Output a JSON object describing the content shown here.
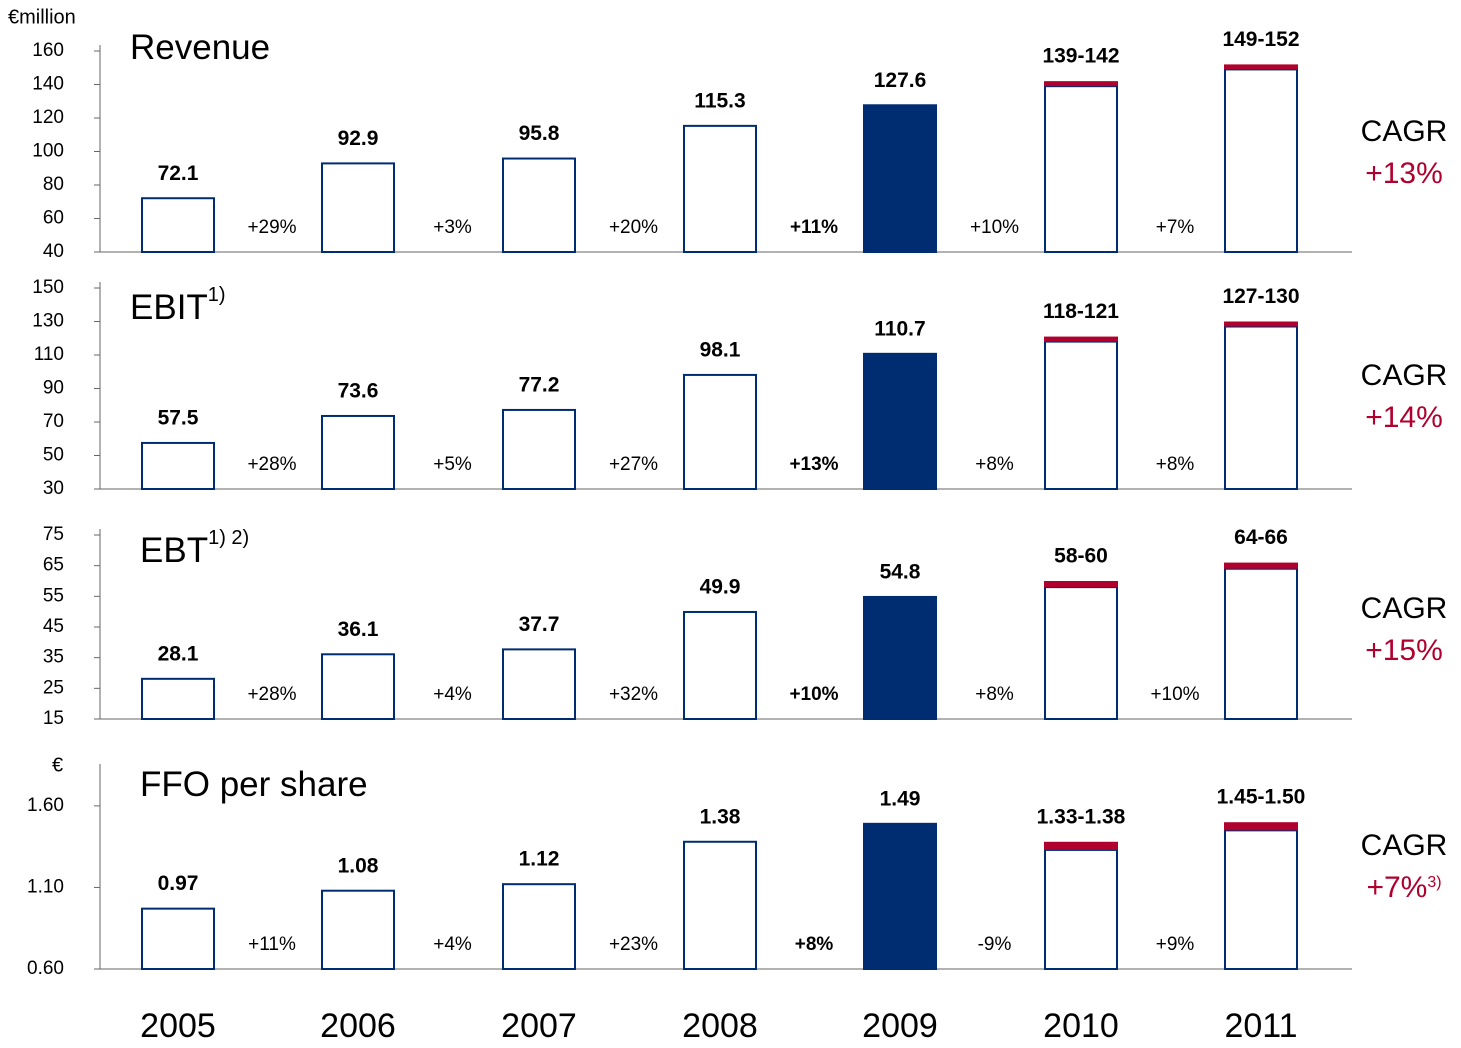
{
  "chart_data": [
    {
      "type": "bar",
      "unit": "€million",
      "title": "Revenue",
      "values": [
        72.1,
        92.9,
        95.8,
        115.3,
        127.6,
        139,
        149
      ],
      "upper": [
        null,
        null,
        null,
        null,
        null,
        142,
        152
      ],
      "value_labels": [
        "72.1",
        "92.9",
        "95.8",
        "115.3",
        "127.6",
        "139-142",
        "149-152"
      ],
      "growth": [
        "+29%",
        "+3%",
        "+20%",
        "+11%",
        "+10%",
        "+7%"
      ],
      "cagr_label": "CAGR",
      "cagr": "+13%",
      "ylim": [
        40,
        160
      ],
      "yticks": [
        40,
        60,
        80,
        100,
        120,
        140,
        160
      ],
      "fill_colors": [
        "#ffffff",
        "#ffffff",
        "#ffffff",
        "#ffffff",
        "#002d72",
        "#ffffff",
        "#ffffff"
      ],
      "edge_color": "#002d72",
      "range_color": "#b0002e",
      "cagr_color": "#b0002e"
    },
    {
      "type": "bar",
      "title": "EBIT",
      "title_note": "1)",
      "values": [
        57.5,
        73.6,
        77.2,
        98.1,
        110.7,
        118,
        127
      ],
      "upper": [
        null,
        null,
        null,
        null,
        null,
        121,
        130
      ],
      "value_labels": [
        "57.5",
        "73.6",
        "77.2",
        "98.1",
        "110.7",
        "118-121",
        "127-130"
      ],
      "growth": [
        "+28%",
        "+5%",
        "+27%",
        "+13%",
        "+8%",
        "+8%"
      ],
      "cagr_label": "CAGR",
      "cagr": "+14%",
      "ylim": [
        30,
        150
      ],
      "yticks": [
        30,
        50,
        70,
        90,
        110,
        130,
        150
      ],
      "fill_colors": [
        "#ffffff",
        "#ffffff",
        "#ffffff",
        "#ffffff",
        "#002d72",
        "#ffffff",
        "#ffffff"
      ],
      "edge_color": "#002d72",
      "range_color": "#b0002e",
      "cagr_color": "#b0002e"
    },
    {
      "type": "bar",
      "title": "EBT",
      "title_note": "1) 2)",
      "values": [
        28.1,
        36.1,
        37.7,
        49.9,
        54.8,
        58,
        64
      ],
      "upper": [
        null,
        null,
        null,
        null,
        null,
        60,
        66
      ],
      "value_labels": [
        "28.1",
        "36.1",
        "37.7",
        "49.9",
        "54.8",
        "58-60",
        "64-66"
      ],
      "growth": [
        "+28%",
        "+4%",
        "+32%",
        "+10%",
        "+8%",
        "+10%"
      ],
      "cagr_label": "CAGR",
      "cagr": "+15%",
      "ylim": [
        15,
        75
      ],
      "yticks": [
        15,
        25,
        35,
        45,
        55,
        65,
        75
      ],
      "fill_colors": [
        "#ffffff",
        "#ffffff",
        "#ffffff",
        "#ffffff",
        "#002d72",
        "#ffffff",
        "#ffffff"
      ],
      "edge_color": "#002d72",
      "range_color": "#b0002e",
      "cagr_color": "#b0002e"
    },
    {
      "type": "bar",
      "unit": "€",
      "title": "FFO per share",
      "categories": [
        "2005",
        "2006",
        "2007",
        "2008",
        "2009",
        "2010",
        "2011"
      ],
      "values": [
        0.97,
        1.08,
        1.12,
        1.38,
        1.49,
        1.33,
        1.45
      ],
      "upper": [
        null,
        null,
        null,
        null,
        null,
        1.38,
        1.5
      ],
      "value_labels": [
        "0.97",
        "1.08",
        "1.12",
        "1.38",
        "1.49",
        "1.33-1.38",
        "1.45-1.50"
      ],
      "growth": [
        "+11%",
        "+4%",
        "+23%",
        "+8%",
        "-9%",
        "+9%"
      ],
      "cagr_label": "CAGR",
      "cagr": "+7%",
      "cagr_note": "3)",
      "ylim": [
        0.6,
        1.82
      ],
      "yticks": [
        {
          "value": 0.6,
          "label": "0.60"
        },
        {
          "value": 1.1,
          "label": "1.10"
        },
        {
          "value": 1.6,
          "label": "1.60"
        }
      ],
      "fill_colors": [
        "#ffffff",
        "#ffffff",
        "#ffffff",
        "#ffffff",
        "#002d72",
        "#ffffff",
        "#ffffff"
      ],
      "edge_color": "#002d72",
      "range_color": "#b0002e",
      "cagr_color": "#b0002e"
    }
  ]
}
